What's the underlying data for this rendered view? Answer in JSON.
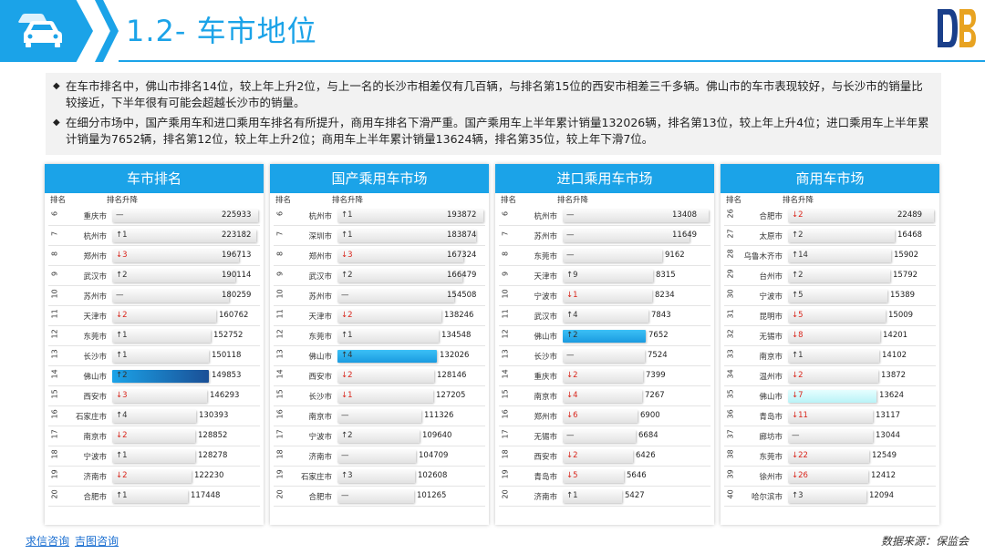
{
  "header": {
    "title": "1.2- 车市地位"
  },
  "summary": {
    "p1": "在车市排名中，佛山市排名14位，较上年上升2位，与上一名的长沙市相差仅有几百辆，与排名第15位的西安市相差三千多辆。佛山市的车市表现较好，与长沙市的销量比较接近，下半年很有可能会超越长沙市的销量。",
    "p2": "在细分市场中，国产乘用车和进口乘用车排名有所提升，商用车排名下滑严重。国产乘用车上半年累计销量132026辆，排名第13位，较上年上升4位；进口乘用车上半年累计销量为7652辆，排名第12位，较上年上升2位；商用车上半年累计销量13624辆，排名第35位，较上年下滑7位。"
  },
  "colheads": {
    "rank": "排名",
    "change": "排名升降"
  },
  "panels": [
    {
      "title": "车市排名",
      "max": 225933,
      "rows": [
        {
          "rank": "6",
          "city": "重庆市",
          "change": "—",
          "dir": "flat",
          "value": 225933
        },
        {
          "rank": "7",
          "city": "杭州市",
          "change": "↑1",
          "dir": "up",
          "value": 223182
        },
        {
          "rank": "8",
          "city": "郑州市",
          "change": "↓3",
          "dir": "down",
          "value": 196713
        },
        {
          "rank": "9",
          "city": "武汉市",
          "change": "↑2",
          "dir": "up",
          "value": 190114
        },
        {
          "rank": "10",
          "city": "苏州市",
          "change": "—",
          "dir": "flat",
          "value": 180259
        },
        {
          "rank": "11",
          "city": "天津市",
          "change": "↓2",
          "dir": "down",
          "value": 160762
        },
        {
          "rank": "12",
          "city": "东莞市",
          "change": "↑1",
          "dir": "up",
          "value": 152752
        },
        {
          "rank": "13",
          "city": "长沙市",
          "change": "↑1",
          "dir": "up",
          "value": 150118
        },
        {
          "rank": "14",
          "city": "佛山市",
          "change": "↑2",
          "dir": "up",
          "value": 149853,
          "hl": "hl1"
        },
        {
          "rank": "15",
          "city": "西安市",
          "change": "↓3",
          "dir": "down",
          "value": 146293
        },
        {
          "rank": "16",
          "city": "石家庄市",
          "change": "↑4",
          "dir": "up",
          "value": 130393
        },
        {
          "rank": "17",
          "city": "南京市",
          "change": "↓2",
          "dir": "down",
          "value": 128852
        },
        {
          "rank": "18",
          "city": "宁波市",
          "change": "↑1",
          "dir": "up",
          "value": 128278
        },
        {
          "rank": "19",
          "city": "济南市",
          "change": "↓2",
          "dir": "down",
          "value": 122230
        },
        {
          "rank": "20",
          "city": "合肥市",
          "change": "↑1",
          "dir": "up",
          "value": 117448
        }
      ]
    },
    {
      "title": "国产乘用车市场",
      "max": 193872,
      "rows": [
        {
          "rank": "6",
          "city": "杭州市",
          "change": "↑1",
          "dir": "up",
          "value": 193872
        },
        {
          "rank": "7",
          "city": "深圳市",
          "change": "↑1",
          "dir": "up",
          "value": 183874
        },
        {
          "rank": "8",
          "city": "郑州市",
          "change": "↓3",
          "dir": "down",
          "value": 167324
        },
        {
          "rank": "9",
          "city": "武汉市",
          "change": "↑2",
          "dir": "up",
          "value": 166479
        },
        {
          "rank": "10",
          "city": "苏州市",
          "change": "—",
          "dir": "flat",
          "value": 154508
        },
        {
          "rank": "11",
          "city": "天津市",
          "change": "↓2",
          "dir": "down",
          "value": 138246
        },
        {
          "rank": "12",
          "city": "东莞市",
          "change": "↑1",
          "dir": "up",
          "value": 134548
        },
        {
          "rank": "13",
          "city": "佛山市",
          "change": "↑4",
          "dir": "up",
          "value": 132026,
          "hl": "hl2"
        },
        {
          "rank": "14",
          "city": "西安市",
          "change": "↓2",
          "dir": "down",
          "value": 128146
        },
        {
          "rank": "15",
          "city": "长沙市",
          "change": "↓1",
          "dir": "down",
          "value": 127205
        },
        {
          "rank": "16",
          "city": "南京市",
          "change": "—",
          "dir": "flat",
          "value": 111326
        },
        {
          "rank": "17",
          "city": "宁波市",
          "change": "↑2",
          "dir": "up",
          "value": 109640
        },
        {
          "rank": "18",
          "city": "济南市",
          "change": "—",
          "dir": "flat",
          "value": 104709
        },
        {
          "rank": "19",
          "city": "石家庄市",
          "change": "↑3",
          "dir": "up",
          "value": 102608
        },
        {
          "rank": "20",
          "city": "合肥市",
          "change": "—",
          "dir": "flat",
          "value": 101265
        }
      ]
    },
    {
      "title": "进口乘用车市场",
      "max": 13408,
      "rows": [
        {
          "rank": "6",
          "city": "杭州市",
          "change": "—",
          "dir": "flat",
          "value": 13408
        },
        {
          "rank": "7",
          "city": "苏州市",
          "change": "—",
          "dir": "flat",
          "value": 11649
        },
        {
          "rank": "8",
          "city": "东莞市",
          "change": "—",
          "dir": "flat",
          "value": 9162
        },
        {
          "rank": "9",
          "city": "天津市",
          "change": "↑9",
          "dir": "up",
          "value": 8315
        },
        {
          "rank": "10",
          "city": "宁波市",
          "change": "↓1",
          "dir": "down",
          "value": 8234
        },
        {
          "rank": "11",
          "city": "武汉市",
          "change": "↑4",
          "dir": "up",
          "value": 7843
        },
        {
          "rank": "12",
          "city": "佛山市",
          "change": "↑2",
          "dir": "up",
          "value": 7652,
          "hl": "hl2"
        },
        {
          "rank": "13",
          "city": "长沙市",
          "change": "—",
          "dir": "flat",
          "value": 7524
        },
        {
          "rank": "14",
          "city": "重庆市",
          "change": "↓2",
          "dir": "down",
          "value": 7399
        },
        {
          "rank": "15",
          "city": "南京市",
          "change": "↓4",
          "dir": "down",
          "value": 7267
        },
        {
          "rank": "16",
          "city": "郑州市",
          "change": "↓6",
          "dir": "down",
          "value": 6900
        },
        {
          "rank": "17",
          "city": "无锡市",
          "change": "—",
          "dir": "flat",
          "value": 6684
        },
        {
          "rank": "18",
          "city": "西安市",
          "change": "↓2",
          "dir": "down",
          "value": 6426
        },
        {
          "rank": "19",
          "city": "青岛市",
          "change": "↓5",
          "dir": "down",
          "value": 5646
        },
        {
          "rank": "20",
          "city": "济南市",
          "change": "↑1",
          "dir": "up",
          "value": 5427
        }
      ]
    },
    {
      "title": "商用车市场",
      "max": 22489,
      "rows": [
        {
          "rank": "26",
          "city": "合肥市",
          "change": "↓2",
          "dir": "down",
          "value": 22489
        },
        {
          "rank": "27",
          "city": "太原市",
          "change": "↑2",
          "dir": "up",
          "value": 16468
        },
        {
          "rank": "28",
          "city": "乌鲁木齐市",
          "change": "↑14",
          "dir": "up",
          "value": 15902
        },
        {
          "rank": "29",
          "city": "台州市",
          "change": "↑2",
          "dir": "up",
          "value": 15792
        },
        {
          "rank": "30",
          "city": "宁波市",
          "change": "↑5",
          "dir": "up",
          "value": 15389
        },
        {
          "rank": "31",
          "city": "昆明市",
          "change": "↓5",
          "dir": "down",
          "value": 15009
        },
        {
          "rank": "32",
          "city": "无锡市",
          "change": "↓8",
          "dir": "down",
          "value": 14201
        },
        {
          "rank": "33",
          "city": "南京市",
          "change": "↑1",
          "dir": "up",
          "value": 14102
        },
        {
          "rank": "34",
          "city": "温州市",
          "change": "↓2",
          "dir": "down",
          "value": 13872
        },
        {
          "rank": "35",
          "city": "佛山市",
          "change": "↓7",
          "dir": "down",
          "value": 13624,
          "hl": "hl3"
        },
        {
          "rank": "36",
          "city": "青岛市",
          "change": "↓11",
          "dir": "down",
          "value": 13117
        },
        {
          "rank": "37",
          "city": "廊坊市",
          "change": "—",
          "dir": "flat",
          "value": 13044
        },
        {
          "rank": "38",
          "city": "东莞市",
          "change": "↓22",
          "dir": "down",
          "value": 12549
        },
        {
          "rank": "39",
          "city": "徐州市",
          "change": "↓26",
          "dir": "down",
          "value": 12412
        },
        {
          "rank": "40",
          "city": "哈尔滨市",
          "change": "↑3",
          "dir": "up",
          "value": 12094
        }
      ]
    }
  ],
  "footer": {
    "link1": "求信咨询",
    "link2": "吉图咨询",
    "source": "数据来源：保监会"
  },
  "colors": {
    "accent": "#1ba3e8",
    "down": "#d9261c",
    "foshan_dark": "#1a4f96",
    "foshan_light": "#b9f3f7"
  },
  "icons": {
    "header": "car-icon",
    "logo": "brand-logo"
  }
}
